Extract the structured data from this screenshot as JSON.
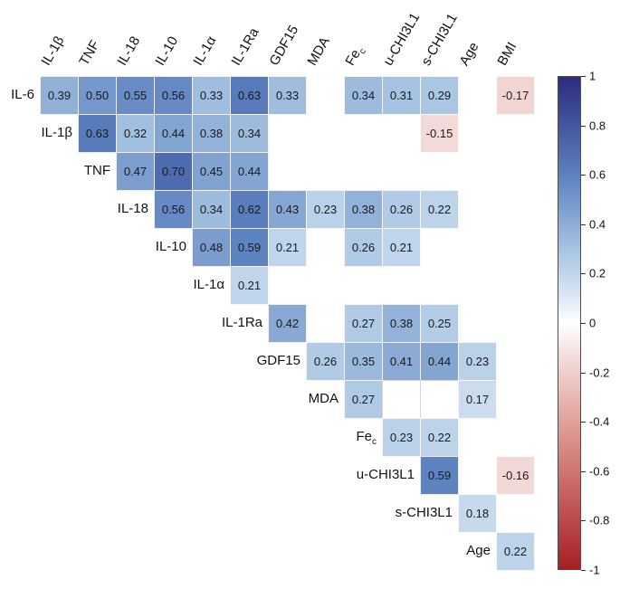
{
  "chart_data": {
    "type": "heatmap",
    "subtype": "correlation-matrix-upper-triangle",
    "title": "",
    "variables": [
      "IL-6",
      "IL-1β",
      "TNF",
      "IL-18",
      "IL-10",
      "IL-1α",
      "IL-1Ra",
      "GDF15",
      "MDA",
      "Fe_c",
      "u-CHI3L1",
      "s-CHI3L1",
      "Age",
      "BMI"
    ],
    "row_labels": [
      "IL-6",
      "IL-1β",
      "TNF",
      "IL-18",
      "IL-10",
      "IL-1α",
      "IL-1Ra",
      "GDF15",
      "MDA",
      "Fe_c",
      "u-CHI3L1",
      "s-CHI3L1",
      "Age"
    ],
    "column_labels": [
      "IL-1β",
      "TNF",
      "IL-18",
      "IL-10",
      "IL-1α",
      "IL-1Ra",
      "GDF15",
      "MDA",
      "Fe_c",
      "u-CHI3L1",
      "s-CHI3L1",
      "Age",
      "BMI"
    ],
    "cells": [
      {
        "row": "IL-6",
        "col": "IL-1β",
        "value": 0.39
      },
      {
        "row": "IL-6",
        "col": "TNF",
        "value": 0.5
      },
      {
        "row": "IL-6",
        "col": "IL-18",
        "value": 0.55
      },
      {
        "row": "IL-6",
        "col": "IL-10",
        "value": 0.56
      },
      {
        "row": "IL-6",
        "col": "IL-1α",
        "value": 0.33
      },
      {
        "row": "IL-6",
        "col": "IL-1Ra",
        "value": 0.63
      },
      {
        "row": "IL-6",
        "col": "GDF15",
        "value": 0.33
      },
      {
        "row": "IL-6",
        "col": "Fe_c",
        "value": 0.34
      },
      {
        "row": "IL-6",
        "col": "u-CHI3L1",
        "value": 0.31
      },
      {
        "row": "IL-6",
        "col": "s-CHI3L1",
        "value": 0.29
      },
      {
        "row": "IL-6",
        "col": "BMI",
        "value": -0.17
      },
      {
        "row": "IL-1β",
        "col": "TNF",
        "value": 0.63
      },
      {
        "row": "IL-1β",
        "col": "IL-18",
        "value": 0.32
      },
      {
        "row": "IL-1β",
        "col": "IL-10",
        "value": 0.44
      },
      {
        "row": "IL-1β",
        "col": "IL-1α",
        "value": 0.38
      },
      {
        "row": "IL-1β",
        "col": "IL-1Ra",
        "value": 0.34
      },
      {
        "row": "IL-1β",
        "col": "s-CHI3L1",
        "value": -0.15
      },
      {
        "row": "TNF",
        "col": "IL-18",
        "value": 0.47
      },
      {
        "row": "TNF",
        "col": "IL-10",
        "value": 0.7
      },
      {
        "row": "TNF",
        "col": "IL-1α",
        "value": 0.45
      },
      {
        "row": "TNF",
        "col": "IL-1Ra",
        "value": 0.44
      },
      {
        "row": "IL-18",
        "col": "IL-10",
        "value": 0.56
      },
      {
        "row": "IL-18",
        "col": "IL-1α",
        "value": 0.34
      },
      {
        "row": "IL-18",
        "col": "IL-1Ra",
        "value": 0.62
      },
      {
        "row": "IL-18",
        "col": "GDF15",
        "value": 0.43
      },
      {
        "row": "IL-18",
        "col": "MDA",
        "value": 0.23
      },
      {
        "row": "IL-18",
        "col": "Fe_c",
        "value": 0.38
      },
      {
        "row": "IL-18",
        "col": "u-CHI3L1",
        "value": 0.26
      },
      {
        "row": "IL-18",
        "col": "s-CHI3L1",
        "value": 0.22
      },
      {
        "row": "IL-10",
        "col": "IL-1α",
        "value": 0.48
      },
      {
        "row": "IL-10",
        "col": "IL-1Ra",
        "value": 0.59
      },
      {
        "row": "IL-10",
        "col": "GDF15",
        "value": 0.21
      },
      {
        "row": "IL-10",
        "col": "Fe_c",
        "value": 0.26
      },
      {
        "row": "IL-10",
        "col": "u-CHI3L1",
        "value": 0.21
      },
      {
        "row": "IL-1α",
        "col": "IL-1Ra",
        "value": 0.21
      },
      {
        "row": "IL-1Ra",
        "col": "GDF15",
        "value": 0.42
      },
      {
        "row": "IL-1Ra",
        "col": "Fe_c",
        "value": 0.27
      },
      {
        "row": "IL-1Ra",
        "col": "u-CHI3L1",
        "value": 0.38
      },
      {
        "row": "IL-1Ra",
        "col": "s-CHI3L1",
        "value": 0.25
      },
      {
        "row": "GDF15",
        "col": "MDA",
        "value": 0.26
      },
      {
        "row": "GDF15",
        "col": "Fe_c",
        "value": 0.35
      },
      {
        "row": "GDF15",
        "col": "u-CHI3L1",
        "value": 0.41
      },
      {
        "row": "GDF15",
        "col": "s-CHI3L1",
        "value": 0.44
      },
      {
        "row": "GDF15",
        "col": "Age",
        "value": 0.23
      },
      {
        "row": "MDA",
        "col": "Fe_c",
        "value": 0.27
      },
      {
        "row": "MDA",
        "col": "u-CHI3L1",
        "value": null,
        "outlined": true
      },
      {
        "row": "MDA",
        "col": "s-CHI3L1",
        "value": null,
        "outlined": true
      },
      {
        "row": "MDA",
        "col": "Age",
        "value": 0.17
      },
      {
        "row": "Fe_c",
        "col": "u-CHI3L1",
        "value": 0.23
      },
      {
        "row": "Fe_c",
        "col": "s-CHI3L1",
        "value": 0.22
      },
      {
        "row": "u-CHI3L1",
        "col": "s-CHI3L1",
        "value": 0.59
      },
      {
        "row": "u-CHI3L1",
        "col": "BMI",
        "value": -0.16
      },
      {
        "row": "s-CHI3L1",
        "col": "Age",
        "value": 0.18
      },
      {
        "row": "Age",
        "col": "BMI",
        "value": 0.22
      }
    ],
    "colorbar": {
      "position": "right",
      "min": -1,
      "max": 1,
      "tick_labels": [
        "1",
        "0.8",
        "0.6",
        "0.4",
        "0.2",
        "0",
        "-0.2",
        "-0.4",
        "-0.6",
        "-0.8",
        "-1"
      ]
    },
    "colors": {
      "positive_max": "#2c2c7f",
      "zero": "#ffffff",
      "negative_max": "#a62024",
      "stops": [
        {
          "v": -1,
          "c": "#a62024"
        },
        {
          "v": -0.5,
          "c": "#d98b84"
        },
        {
          "v": -0.15,
          "c": "#f3dad8"
        },
        {
          "v": 0,
          "c": "#ffffff"
        },
        {
          "v": 0.1,
          "c": "#dde9f5"
        },
        {
          "v": 0.3,
          "c": "#a6c4e2"
        },
        {
          "v": 0.6,
          "c": "#5c81c0"
        },
        {
          "v": 1,
          "c": "#2c2c7f"
        }
      ]
    },
    "grid": false,
    "legend_position": "right-colorbar"
  }
}
